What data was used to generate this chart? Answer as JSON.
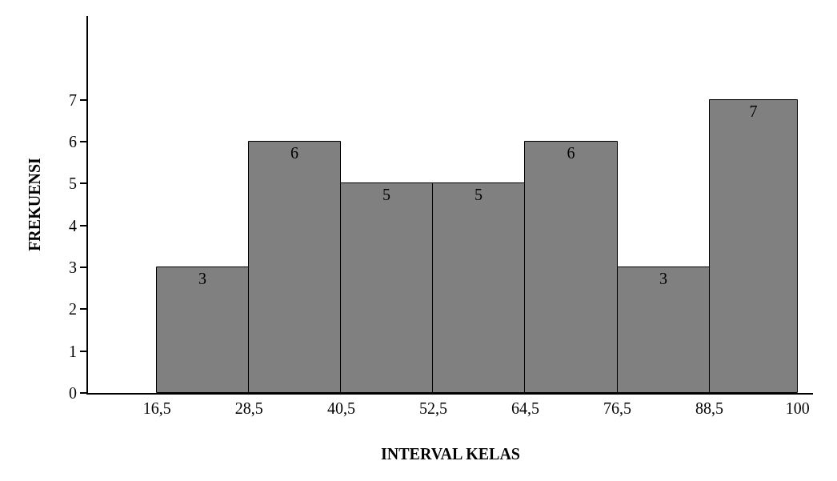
{
  "chart_data": {
    "type": "histogram",
    "xlabel": "INTERVAL KELAS",
    "ylabel": "FREKUENSI",
    "bins": [
      16.5,
      28.5,
      40.5,
      52.5,
      64.5,
      76.5,
      88.5,
      100
    ],
    "values": [
      3,
      6,
      5,
      5,
      6,
      3,
      7
    ],
    "color": "#808080",
    "data_labels": true,
    "xlim": [
      7.5,
      102
    ],
    "xticks": [
      {
        "value": 16.5,
        "label": "16,5"
      },
      {
        "value": 28.5,
        "label": "28,5"
      },
      {
        "value": 40.5,
        "label": "40,5"
      },
      {
        "value": 52.5,
        "label": "52,5"
      },
      {
        "value": 64.5,
        "label": "64,5"
      },
      {
        "value": 76.5,
        "label": "76,5"
      },
      {
        "value": 88.5,
        "label": "88,5"
      },
      100
    ],
    "ylim": [
      0,
      9
    ],
    "yticks": [
      0,
      1,
      2,
      3,
      4,
      5,
      6,
      7
    ]
  }
}
